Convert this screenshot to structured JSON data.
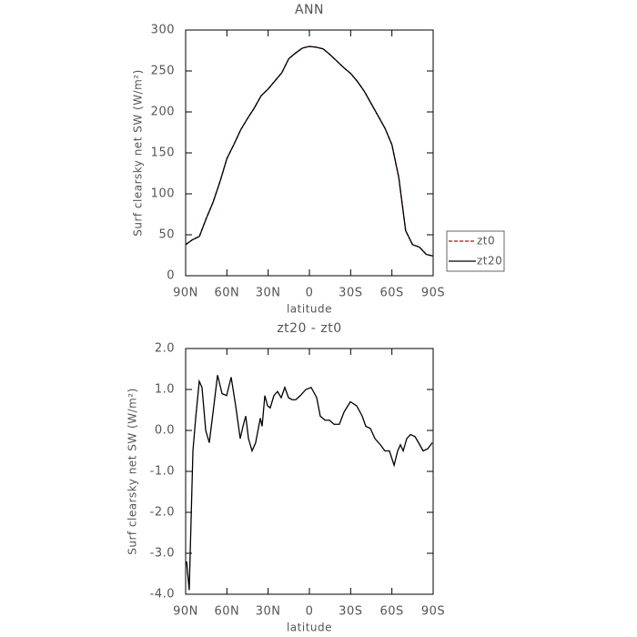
{
  "chart_data": [
    {
      "type": "line",
      "title": "ANN",
      "xlabel": "latitude",
      "ylabel": "Surf clearsky net SW (W/m²)",
      "x": [
        90,
        85,
        80,
        75,
        70,
        65,
        60,
        55,
        50,
        45,
        40,
        35,
        30,
        25,
        20,
        15,
        10,
        5,
        0,
        -5,
        -10,
        -15,
        -20,
        -25,
        -30,
        -35,
        -40,
        -45,
        -50,
        -55,
        -60,
        -65,
        -70,
        -75,
        -80,
        -85,
        -90
      ],
      "series": [
        {
          "name": "zt0",
          "color": "#cc0000",
          "linestyle": "dashed",
          "values": [
            38,
            44,
            48,
            70,
            90,
            115,
            143,
            160,
            178,
            192,
            205,
            220,
            228,
            238,
            248,
            265,
            272,
            278,
            280,
            279,
            277,
            270,
            262,
            254,
            247,
            237,
            225,
            210,
            195,
            180,
            160,
            120,
            55,
            38,
            35,
            26,
            24
          ]
        },
        {
          "name": "zt20",
          "color": "#000000",
          "linestyle": "solid",
          "values": [
            38,
            44,
            48,
            70,
            90,
            115,
            143,
            160,
            178,
            192,
            205,
            220,
            228,
            238,
            248,
            265,
            272,
            278,
            280,
            279,
            277,
            270,
            262,
            254,
            247,
            237,
            225,
            210,
            195,
            180,
            160,
            120,
            55,
            38,
            35,
            26,
            24
          ]
        }
      ],
      "xlim": [
        90,
        -90
      ],
      "xticks": [
        {
          "value": 90,
          "label": "90N"
        },
        {
          "value": 60,
          "label": "60N"
        },
        {
          "value": 30,
          "label": "30N"
        },
        0,
        {
          "value": -30,
          "label": "30S"
        },
        {
          "value": -60,
          "label": "60S"
        },
        {
          "value": -90,
          "label": "90S"
        }
      ],
      "ylim": [
        0,
        300
      ],
      "yticks": [
        0,
        50,
        100,
        150,
        200,
        250,
        300
      ],
      "legend": "outside-right"
    },
    {
      "type": "line",
      "title": "zt20 - zt0",
      "xlabel": "latitude",
      "ylabel": "Surf clearsky net SW (W/m²)",
      "x": [
        89.3,
        87.4,
        84.7,
        82.7,
        80.1,
        78.1,
        75.4,
        72.8,
        69.5,
        66.8,
        63.5,
        60.2,
        56.9,
        53.6,
        50.3,
        48.3,
        46.3,
        44.3,
        41.7,
        39.1,
        35.7,
        34.4,
        32.4,
        30.4,
        28.5,
        25.8,
        23.2,
        20.5,
        17.9,
        15.2,
        12.6,
        9.9,
        6.6,
        2.6,
        -1.3,
        -5.3,
        -7.9,
        -11.3,
        -14.6,
        -17.9,
        -21.8,
        -25.2,
        -29.8,
        -34.4,
        -38.4,
        -41.0,
        -44.3,
        -47.7,
        -51.6,
        -54.9,
        -58.2,
        -61.6,
        -64.2,
        -66.2,
        -68.2,
        -70.8,
        -73.5,
        -76.8,
        -79.4,
        -82.7,
        -86.0,
        -89.4
      ],
      "values": [
        -3.2,
        -3.9,
        -0.5,
        0.3,
        1.2,
        1.05,
        0.0,
        -0.3,
        0.6,
        1.35,
        0.9,
        0.85,
        1.3,
        0.6,
        -0.2,
        0.1,
        0.35,
        -0.2,
        -0.5,
        -0.3,
        0.3,
        0.1,
        0.85,
        0.6,
        0.55,
        0.85,
        0.95,
        0.8,
        1.05,
        0.8,
        0.75,
        0.75,
        0.85,
        1.0,
        1.05,
        0.8,
        0.35,
        0.25,
        0.25,
        0.15,
        0.15,
        0.45,
        0.7,
        0.6,
        0.35,
        0.1,
        0.05,
        -0.2,
        -0.35,
        -0.5,
        -0.5,
        -0.85,
        -0.5,
        -0.35,
        -0.5,
        -0.2,
        -0.1,
        -0.15,
        -0.3,
        -0.5,
        -0.45,
        -0.3
      ],
      "color": "#000000",
      "xlim": [
        90,
        -90
      ],
      "xticks": [
        {
          "value": 90,
          "label": "90N"
        },
        {
          "value": 60,
          "label": "60N"
        },
        {
          "value": 30,
          "label": "30N"
        },
        0,
        {
          "value": -30,
          "label": "30S"
        },
        {
          "value": -60,
          "label": "60S"
        },
        {
          "value": -90,
          "label": "90S"
        }
      ],
      "ylim": [
        -4,
        2
      ],
      "yticks": [
        {
          "value": -4,
          "label": "-4.0"
        },
        {
          "value": -3,
          "label": "-3.0"
        },
        {
          "value": -2,
          "label": "-2.0"
        },
        {
          "value": -1,
          "label": "-1.0"
        },
        {
          "value": 0,
          "label": "0.0"
        },
        {
          "value": 1,
          "label": "1.0"
        },
        {
          "value": 2,
          "label": "2.0"
        }
      ]
    }
  ]
}
